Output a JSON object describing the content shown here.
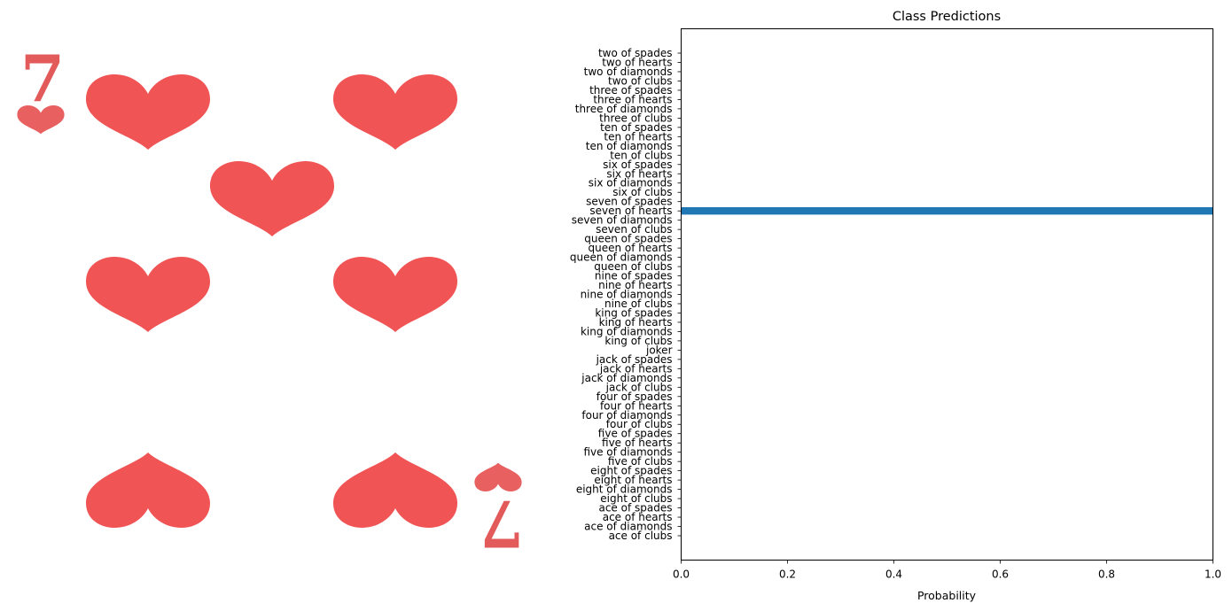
{
  "card_image": {
    "rank": "7",
    "suit": "hearts",
    "pip_color": "#F05454",
    "background": "#ffffff"
  },
  "chart_data": {
    "type": "bar",
    "orientation": "horizontal",
    "title": "Class Predictions",
    "xlabel": "Probability",
    "ylabel": "",
    "xlim": [
      0,
      1.0
    ],
    "xticks": [
      "0.0",
      "0.2",
      "0.4",
      "0.6",
      "0.8",
      "1.0"
    ],
    "bar_color": "#1F77B4",
    "grid": false,
    "categories": [
      "ace of clubs",
      "ace of diamonds",
      "ace of hearts",
      "ace of spades",
      "eight of clubs",
      "eight of diamonds",
      "eight of hearts",
      "eight of spades",
      "five of clubs",
      "five of diamonds",
      "five of hearts",
      "five of spades",
      "four of clubs",
      "four of diamonds",
      "four of hearts",
      "four of spades",
      "jack of clubs",
      "jack of diamonds",
      "jack of hearts",
      "jack of spades",
      "joker",
      "king of clubs",
      "king of diamonds",
      "king of hearts",
      "king of spades",
      "nine of clubs",
      "nine of diamonds",
      "nine of hearts",
      "nine of spades",
      "queen of clubs",
      "queen of diamonds",
      "queen of hearts",
      "queen of spades",
      "seven of clubs",
      "seven of diamonds",
      "seven of hearts",
      "seven of spades",
      "six of clubs",
      "six of diamonds",
      "six of hearts",
      "six of spades",
      "ten of clubs",
      "ten of diamonds",
      "ten of hearts",
      "ten of spades",
      "three of clubs",
      "three of diamonds",
      "three of hearts",
      "three of spades",
      "two of clubs",
      "two of diamonds",
      "two of hearts",
      "two of spades"
    ],
    "values": [
      0,
      0,
      0,
      0,
      0,
      0,
      0,
      0,
      0,
      0,
      0,
      0,
      0,
      0,
      0,
      0,
      0,
      0,
      0,
      0,
      0,
      0,
      0,
      0,
      0,
      0,
      0,
      0,
      0,
      0,
      0,
      0,
      0,
      0,
      0,
      1.0,
      0,
      0,
      0,
      0,
      0,
      0,
      0,
      0,
      0,
      0,
      0,
      0,
      0,
      0,
      0,
      0,
      0
    ]
  }
}
